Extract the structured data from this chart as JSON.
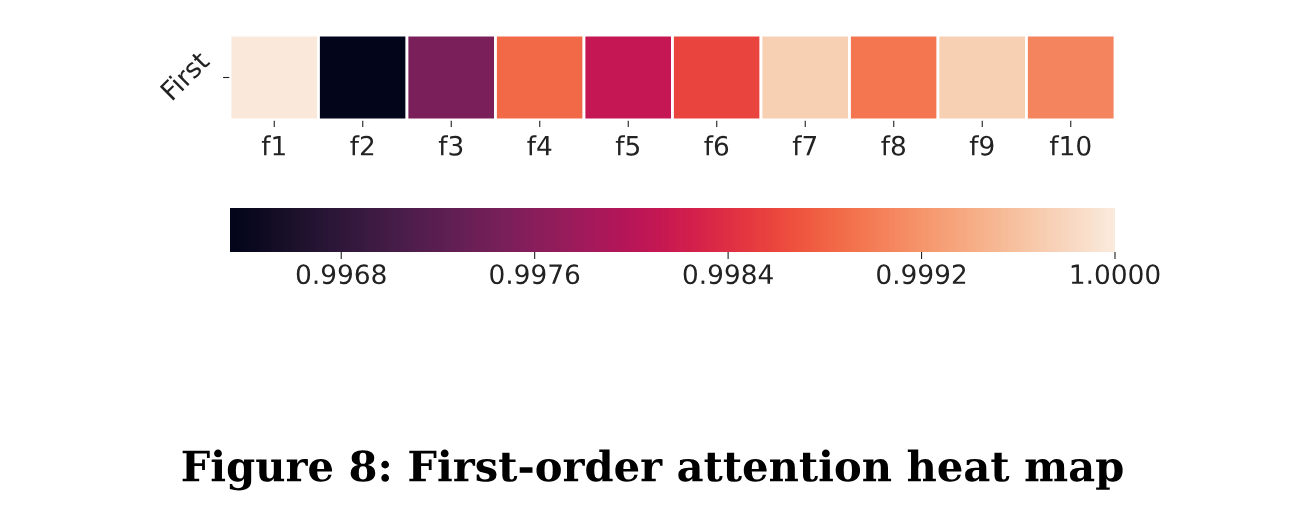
{
  "chart_data": {
    "type": "heatmap",
    "title": "Figure 8: First-order attention heat map",
    "categories": [
      "f1",
      "f2",
      "f3",
      "f4",
      "f5",
      "f6",
      "f7",
      "f8",
      "f9",
      "f10"
    ],
    "y_categories": [
      "First"
    ],
    "cells": [
      [
        0.99998,
        0.99634,
        0.99748,
        0.99885,
        0.99811,
        0.99858,
        0.99972,
        0.99895,
        0.99972,
        0.99906
      ]
    ],
    "clim": [
      0.99634,
      1.0
    ],
    "cticks": [
      0.9968,
      0.9976,
      0.9984,
      0.9992,
      {
        "value": 1.0,
        "label": "1.0000"
      }
    ]
  }
}
